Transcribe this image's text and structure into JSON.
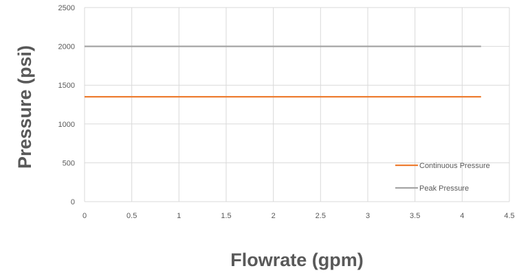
{
  "chart_data": {
    "type": "line",
    "title": "",
    "xlabel": "Flowrate (gpm)",
    "ylabel": "Pressure (psi)",
    "xlim": [
      0,
      4.5
    ],
    "ylim": [
      0,
      2500
    ],
    "x_ticks": [
      "0",
      "0.5",
      "1",
      "1.5",
      "2",
      "2.5",
      "3",
      "3.5",
      "4",
      "4.5"
    ],
    "y_ticks": [
      "0",
      "500",
      "1000",
      "1500",
      "2000",
      "2500"
    ],
    "grid": true,
    "legend_position": "bottom-right",
    "series": [
      {
        "name": "Continuous Pressure",
        "color": "#ED7D31",
        "x": [
          0,
          4.2
        ],
        "y": [
          1350,
          1350
        ]
      },
      {
        "name": "Peak Pressure",
        "color": "#A5A5A5",
        "x": [
          0,
          4.2
        ],
        "y": [
          2000,
          2000
        ]
      }
    ]
  }
}
